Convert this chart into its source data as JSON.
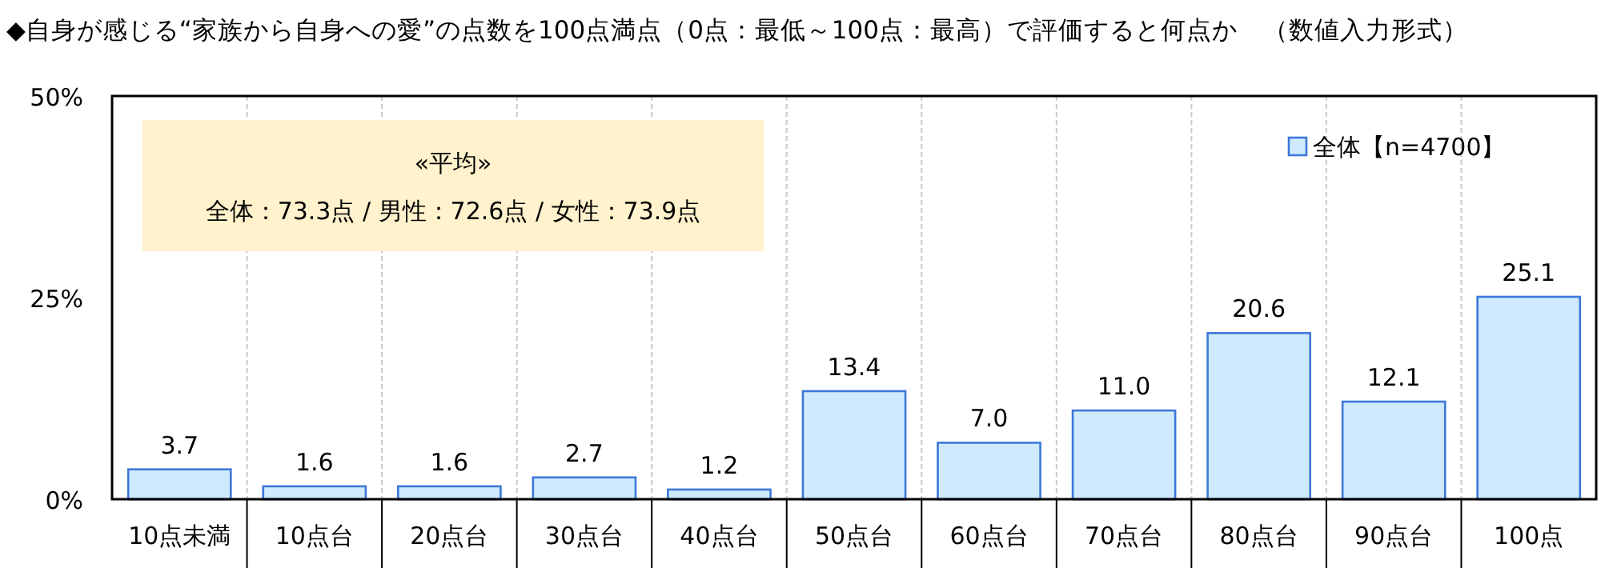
{
  "chart_data": {
    "type": "bar",
    "title": "◆自身が感じる“家族から自身への愛”の点数を100点満点（0点：最低～100点：最高）で評価すると何点か　（数値入力形式）",
    "categories": [
      "10点未満",
      "10点台",
      "20点台",
      "30点台",
      "40点台",
      "50点台",
      "60点台",
      "70点台",
      "80点台",
      "90点台",
      "100点"
    ],
    "series": [
      {
        "name": "全体【n=4700】",
        "color": "#cfeafc",
        "values": [
          3.7,
          1.6,
          1.6,
          2.7,
          1.2,
          13.4,
          7.0,
          11.0,
          20.6,
          12.1,
          25.1
        ]
      }
    ],
    "value_labels": [
      "3.7",
      "1.6",
      "1.6",
      "2.7",
      "1.2",
      "13.4",
      "7.0",
      "11.0",
      "20.6",
      "12.1",
      "25.1"
    ],
    "ylim": [
      0,
      50
    ],
    "yticks": [
      {
        "value": 0,
        "label": "0%"
      },
      {
        "value": 25,
        "label": "25%"
      },
      {
        "value": 50,
        "label": "50%"
      }
    ],
    "grid": "x",
    "legend": "top right",
    "annotations": [
      "«平均»",
      "全体：73.3点 / 男性：72.6点 / 女性：73.9点"
    ]
  }
}
